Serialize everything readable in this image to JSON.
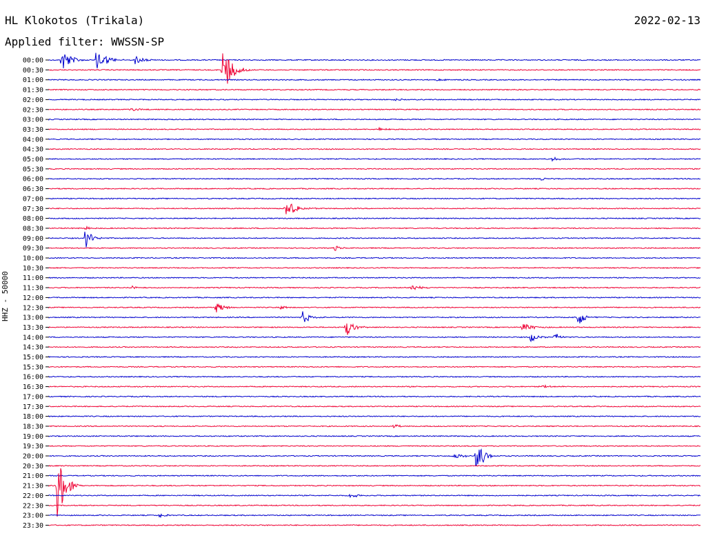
{
  "header": {
    "station": "HL Klokotos (Trikala)",
    "date": "2022-02-13",
    "filter": "Applied filter: WWSSN-SP"
  },
  "chart_data": {
    "type": "line",
    "title": "HL Klokotos (Trikala)",
    "subtitle": "Applied filter: WWSSN-SP",
    "ylabel": "HHZ - 50000",
    "colors": {
      "odd_row": "#0000cc",
      "even_row": "#ee0033"
    },
    "row_labels": [
      "00:00",
      "00:30",
      "01:00",
      "01:30",
      "02:00",
      "02:30",
      "03:00",
      "03:30",
      "04:00",
      "04:30",
      "05:00",
      "05:30",
      "06:00",
      "06:30",
      "07:00",
      "07:30",
      "08:00",
      "08:30",
      "09:00",
      "09:30",
      "10:00",
      "10:30",
      "11:00",
      "11:30",
      "12:00",
      "12:30",
      "13:00",
      "13:30",
      "14:00",
      "14:30",
      "15:00",
      "15:30",
      "16:00",
      "16:30",
      "17:00",
      "17:30",
      "18:00",
      "18:30",
      "19:00",
      "19:30",
      "20:00",
      "20:30",
      "21:00",
      "21:30",
      "22:00",
      "22:30",
      "23:00",
      "23:30"
    ],
    "row_duration_min": 30,
    "events": [
      {
        "row": "00:00",
        "minute": 0.5,
        "amplitude": 18,
        "duration_min": 0.6
      },
      {
        "row": "00:00",
        "minute": 2.1,
        "amplitude": 20,
        "duration_min": 0.6
      },
      {
        "row": "00:00",
        "minute": 3.9,
        "amplitude": 8,
        "duration_min": 0.4
      },
      {
        "row": "00:30",
        "minute": 7.9,
        "amplitude": 35,
        "duration_min": 0.7
      },
      {
        "row": "01:00",
        "minute": 17.8,
        "amplitude": 2,
        "duration_min": 0.3
      },
      {
        "row": "02:00",
        "minute": 15.8,
        "amplitude": 2,
        "duration_min": 0.4
      },
      {
        "row": "02:30",
        "minute": 3.7,
        "amplitude": 3,
        "duration_min": 0.4
      },
      {
        "row": "03:30",
        "minute": 15.1,
        "amplitude": 3,
        "duration_min": 0.2
      },
      {
        "row": "05:00",
        "minute": 23.1,
        "amplitude": 4,
        "duration_min": 0.2
      },
      {
        "row": "06:00",
        "minute": 22.6,
        "amplitude": 3,
        "duration_min": 0.1
      },
      {
        "row": "07:30",
        "minute": 10.8,
        "amplitude": 12,
        "duration_min": 0.9
      },
      {
        "row": "08:30",
        "minute": 1.6,
        "amplitude": 3,
        "duration_min": 0.1
      },
      {
        "row": "09:00",
        "minute": 1.6,
        "amplitude": 16,
        "duration_min": 0.2
      },
      {
        "row": "09:30",
        "minute": 13.1,
        "amplitude": 4,
        "duration_min": 0.1
      },
      {
        "row": "11:30",
        "minute": 3.7,
        "amplitude": 4,
        "duration_min": 0.2
      },
      {
        "row": "11:30",
        "minute": 16.6,
        "amplitude": 5,
        "duration_min": 0.4
      },
      {
        "row": "12:30",
        "minute": 7.6,
        "amplitude": 8,
        "duration_min": 0.6
      },
      {
        "row": "12:30",
        "minute": 10.6,
        "amplitude": 3,
        "duration_min": 0.1
      },
      {
        "row": "13:00",
        "minute": 11.6,
        "amplitude": 10,
        "duration_min": 0.3
      },
      {
        "row": "13:00",
        "minute": 24.3,
        "amplitude": 12,
        "duration_min": 0.3
      },
      {
        "row": "13:30",
        "minute": 13.6,
        "amplitude": 14,
        "duration_min": 0.3
      },
      {
        "row": "13:30",
        "minute": 21.7,
        "amplitude": 7,
        "duration_min": 0.7
      },
      {
        "row": "14:00",
        "minute": 22.1,
        "amplitude": 8,
        "duration_min": 0.2
      },
      {
        "row": "14:00",
        "minute": 23.2,
        "amplitude": 6,
        "duration_min": 0.3
      },
      {
        "row": "16:30",
        "minute": 22.5,
        "amplitude": 2,
        "duration_min": 1.2
      },
      {
        "row": "18:30",
        "minute": 15.8,
        "amplitude": 3,
        "duration_min": 0.1
      },
      {
        "row": "20:00",
        "minute": 18.5,
        "amplitude": 4,
        "duration_min": 0.9
      },
      {
        "row": "20:00",
        "minute": 19.6,
        "amplitude": 30,
        "duration_min": 0.2
      },
      {
        "row": "21:30",
        "minute": 0.3,
        "amplitude": 55,
        "duration_min": 0.4
      },
      {
        "row": "22:00",
        "minute": 13.8,
        "amplitude": 4,
        "duration_min": 0.2
      },
      {
        "row": "23:00",
        "minute": 5.0,
        "amplitude": 4,
        "duration_min": 0.2
      }
    ]
  }
}
